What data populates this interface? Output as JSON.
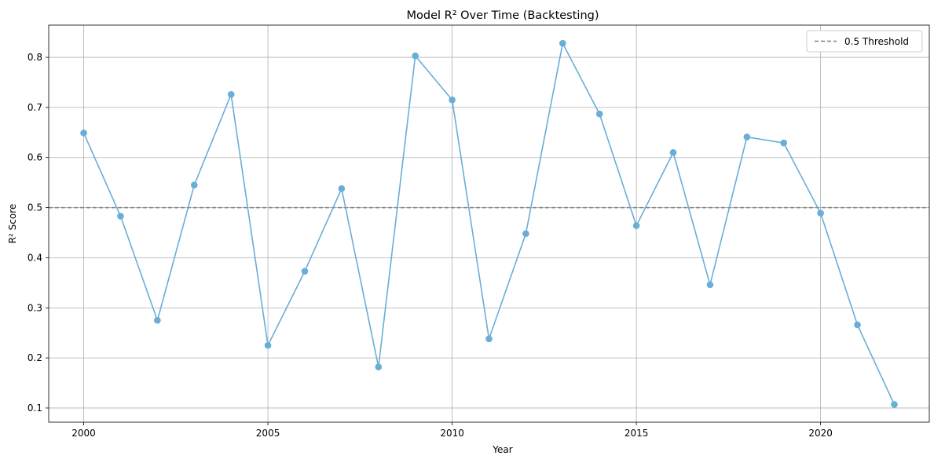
{
  "chart_data": {
    "type": "line",
    "title": "Model R² Over Time (Backtesting)",
    "xlabel": "Year",
    "ylabel": "R² Score",
    "xlim": [
      1999.05,
      2022.95
    ],
    "ylim": [
      0.0717,
      0.8643
    ],
    "xticks": [
      2000,
      2005,
      2010,
      2015,
      2020
    ],
    "yticks": [
      0.1,
      0.2,
      0.3,
      0.4,
      0.5,
      0.6,
      0.7,
      0.8
    ],
    "grid": true,
    "legend_position": "top-right",
    "series": [
      {
        "x": [
          2000,
          2001,
          2002,
          2003,
          2004,
          2005,
          2006,
          2007,
          2008,
          2009,
          2010,
          2011,
          2012,
          2013,
          2014,
          2015,
          2016,
          2017,
          2018,
          2019,
          2020,
          2021,
          2022
        ],
        "values": [
          0.649,
          0.483,
          0.275,
          0.545,
          0.726,
          0.225,
          0.373,
          0.538,
          0.182,
          0.803,
          0.715,
          0.238,
          0.448,
          0.828,
          0.687,
          0.464,
          0.61,
          0.346,
          0.641,
          0.629,
          0.489,
          0.266,
          0.107
        ],
        "color": "#6aaed6",
        "marker": "circle"
      }
    ],
    "reference_lines": [
      {
        "name": "0.5 Threshold",
        "y": 0.5,
        "color": "#808080",
        "style": "dashed"
      }
    ]
  }
}
